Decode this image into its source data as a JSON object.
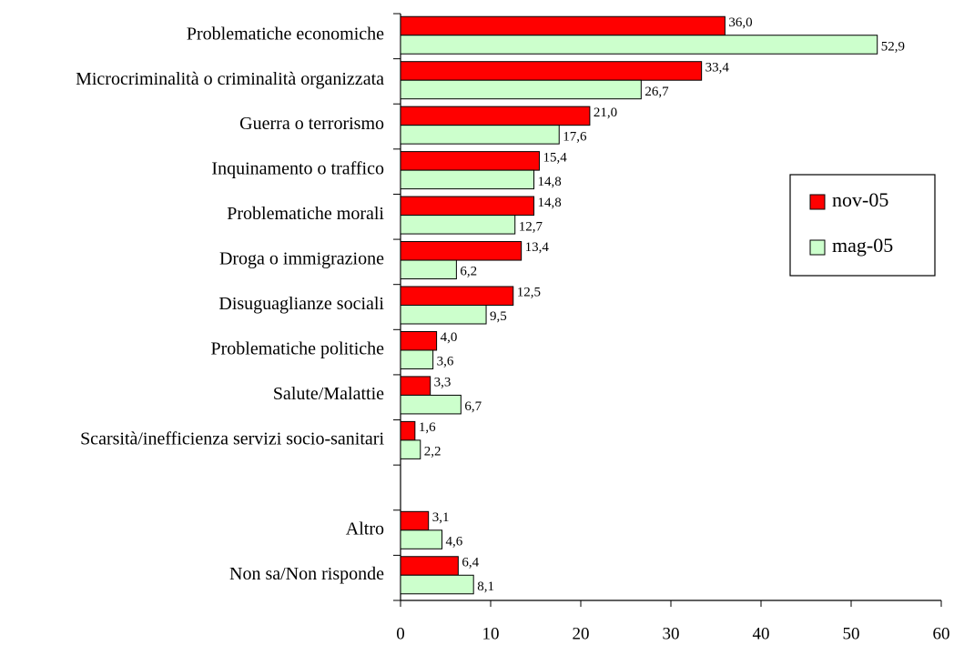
{
  "chart_data": {
    "type": "hbar",
    "categories": [
      "Problematiche economiche",
      "Microcriminalità o criminalità organizzata",
      "Guerra o terrorismo",
      "Inquinamento o traffico",
      "Problematiche morali",
      "Droga o immigrazione",
      "Disuguaglianze sociali",
      "Problematiche politiche",
      "Salute/Malattie",
      "Scarsità/inefficienza servizi socio-sanitari",
      null,
      "Altro",
      "Non sa/Non risponde"
    ],
    "series": [
      {
        "name": "nov-05",
        "color": "#ff0000",
        "values": [
          36.0,
          33.4,
          21.0,
          15.4,
          14.8,
          13.4,
          12.5,
          4.0,
          3.3,
          1.6,
          null,
          3.1,
          6.4
        ],
        "value_labels": [
          "36,0",
          "33,4",
          "21,0",
          "15,4",
          "14,8",
          "13,4",
          "12,5",
          "4,0",
          "3,3",
          "1,6",
          null,
          "3,1",
          "6,4"
        ]
      },
      {
        "name": "mag-05",
        "color": "#ccffcc",
        "values": [
          52.9,
          26.7,
          17.6,
          14.8,
          12.7,
          6.2,
          9.5,
          3.6,
          6.7,
          2.2,
          null,
          4.6,
          8.1
        ],
        "value_labels": [
          "52,9",
          "26,7",
          "17,6",
          "14,8",
          "12,7",
          "6,2",
          "9,5",
          "3,6",
          "6,7",
          "2,2",
          null,
          "4,6",
          "8,1"
        ]
      }
    ],
    "xlim": [
      0,
      60
    ],
    "xticks": [
      0,
      10,
      20,
      30,
      40,
      50,
      60
    ]
  }
}
